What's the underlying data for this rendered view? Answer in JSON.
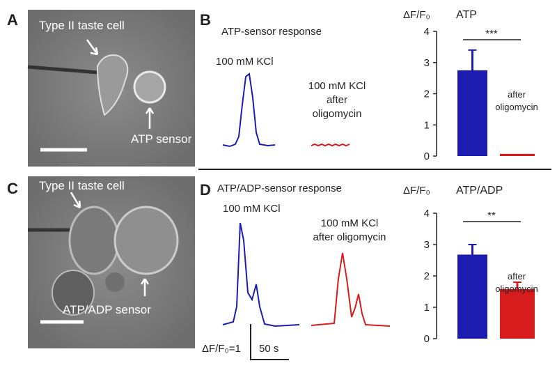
{
  "panels": {
    "a": {
      "letter": "A",
      "cell_label": "Type II taste cell",
      "sensor_label": "ATP sensor"
    },
    "b": {
      "letter": "B",
      "title": "ATP-sensor response",
      "trace1_label": "100 mM KCl",
      "trace2_label": [
        "100 mM KCl",
        "after",
        "oligomycin"
      ]
    },
    "c": {
      "letter": "C",
      "cell_label": "Type II taste cell",
      "sensor_label": "ATP/ADP sensor"
    },
    "d": {
      "letter": "D",
      "title": "ATP/ADP-sensor response",
      "trace1_label": "100 mM KCl",
      "trace2_label": [
        "100 mM KCl",
        "after oligomycin"
      ],
      "scale_y": "ΔF/F₀=1",
      "scale_x": "50 s"
    }
  },
  "chart_data": [
    {
      "type": "bar",
      "title": "ATP",
      "ylabel": "ΔF/F₀",
      "significance": "***",
      "annotation": [
        "after",
        "oligomycin"
      ],
      "values": [
        2.75,
        0.07
      ],
      "errors": [
        0.65,
        null
      ],
      "colors": [
        "#1c1cb0",
        "#d61c1c"
      ],
      "ylim": [
        0,
        4
      ],
      "yticks": [
        0,
        1,
        2,
        3,
        4
      ]
    },
    {
      "type": "bar",
      "title": "ATP/ADP",
      "ylabel": "ΔF/F₀",
      "significance": "**",
      "annotation": [
        "after",
        "oligomycin"
      ],
      "values": [
        2.68,
        1.58
      ],
      "errors": [
        0.32,
        0.22
      ],
      "colors": [
        "#1c1cb0",
        "#d61c1c"
      ],
      "ylim": [
        0,
        4
      ],
      "yticks": [
        0,
        1,
        2,
        3,
        4
      ]
    }
  ]
}
